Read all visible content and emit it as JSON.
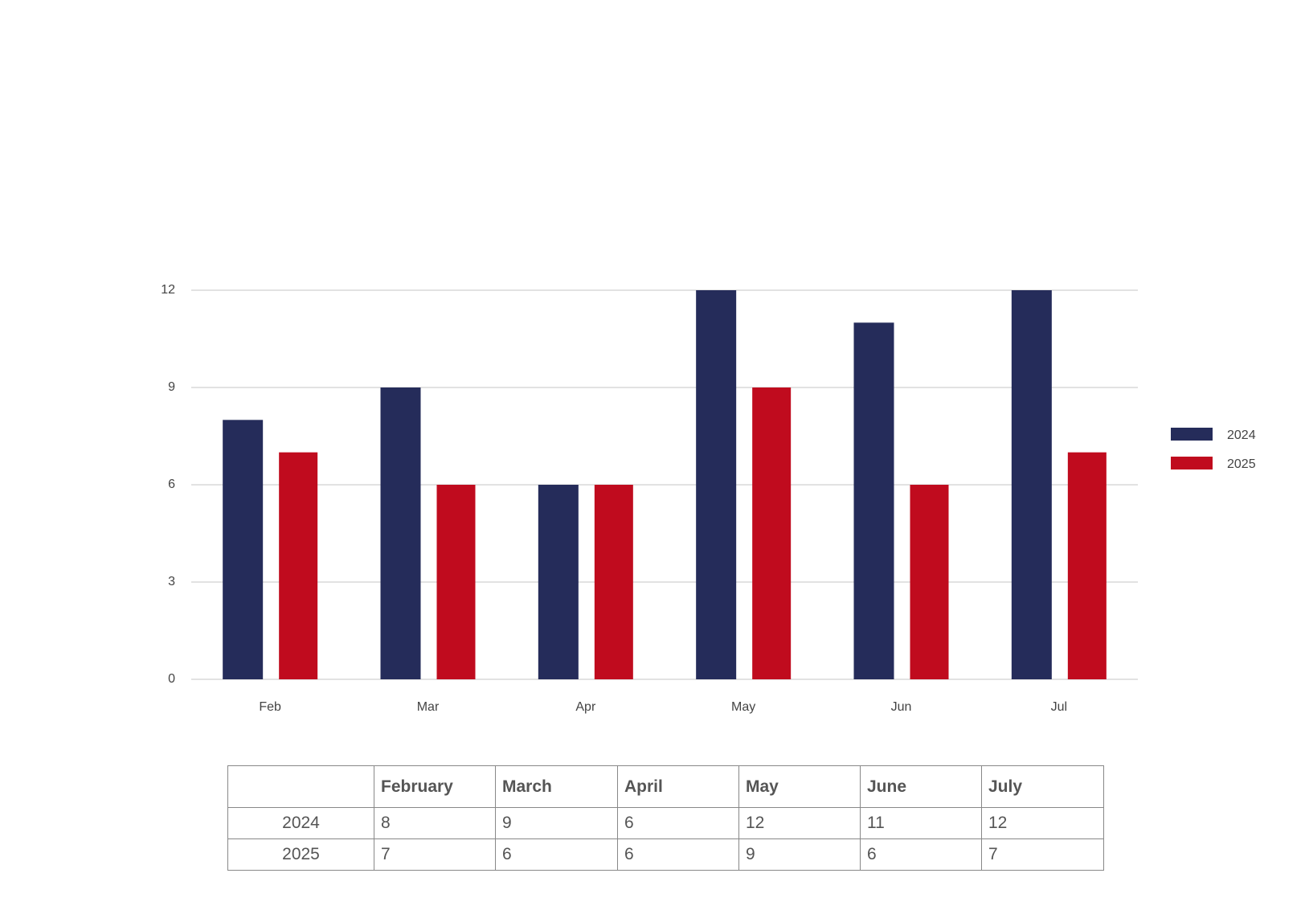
{
  "chart_data": {
    "type": "bar",
    "categories": [
      "Feb",
      "Mar",
      "Apr",
      "May",
      "Jun",
      "Jul"
    ],
    "series": [
      {
        "name": "2024",
        "color": "#252c5a",
        "values": [
          8,
          9,
          6,
          12,
          11,
          12
        ]
      },
      {
        "name": "2025",
        "color": "#c00b1e",
        "values": [
          7,
          6,
          6,
          9,
          6,
          7
        ]
      }
    ],
    "ylim": [
      0,
      12
    ],
    "yticks": [
      0,
      3,
      6,
      9,
      12
    ],
    "grid": true,
    "legend": "right"
  },
  "table": {
    "header": [
      "February",
      "March",
      "April",
      "May",
      "June",
      "July"
    ],
    "rows": [
      {
        "label": "2024",
        "cells": [
          "8",
          "9",
          "6",
          "12",
          "11",
          "12"
        ]
      },
      {
        "label": "2025",
        "cells": [
          "7",
          "6",
          "6",
          "9",
          "6",
          "7"
        ]
      }
    ]
  }
}
